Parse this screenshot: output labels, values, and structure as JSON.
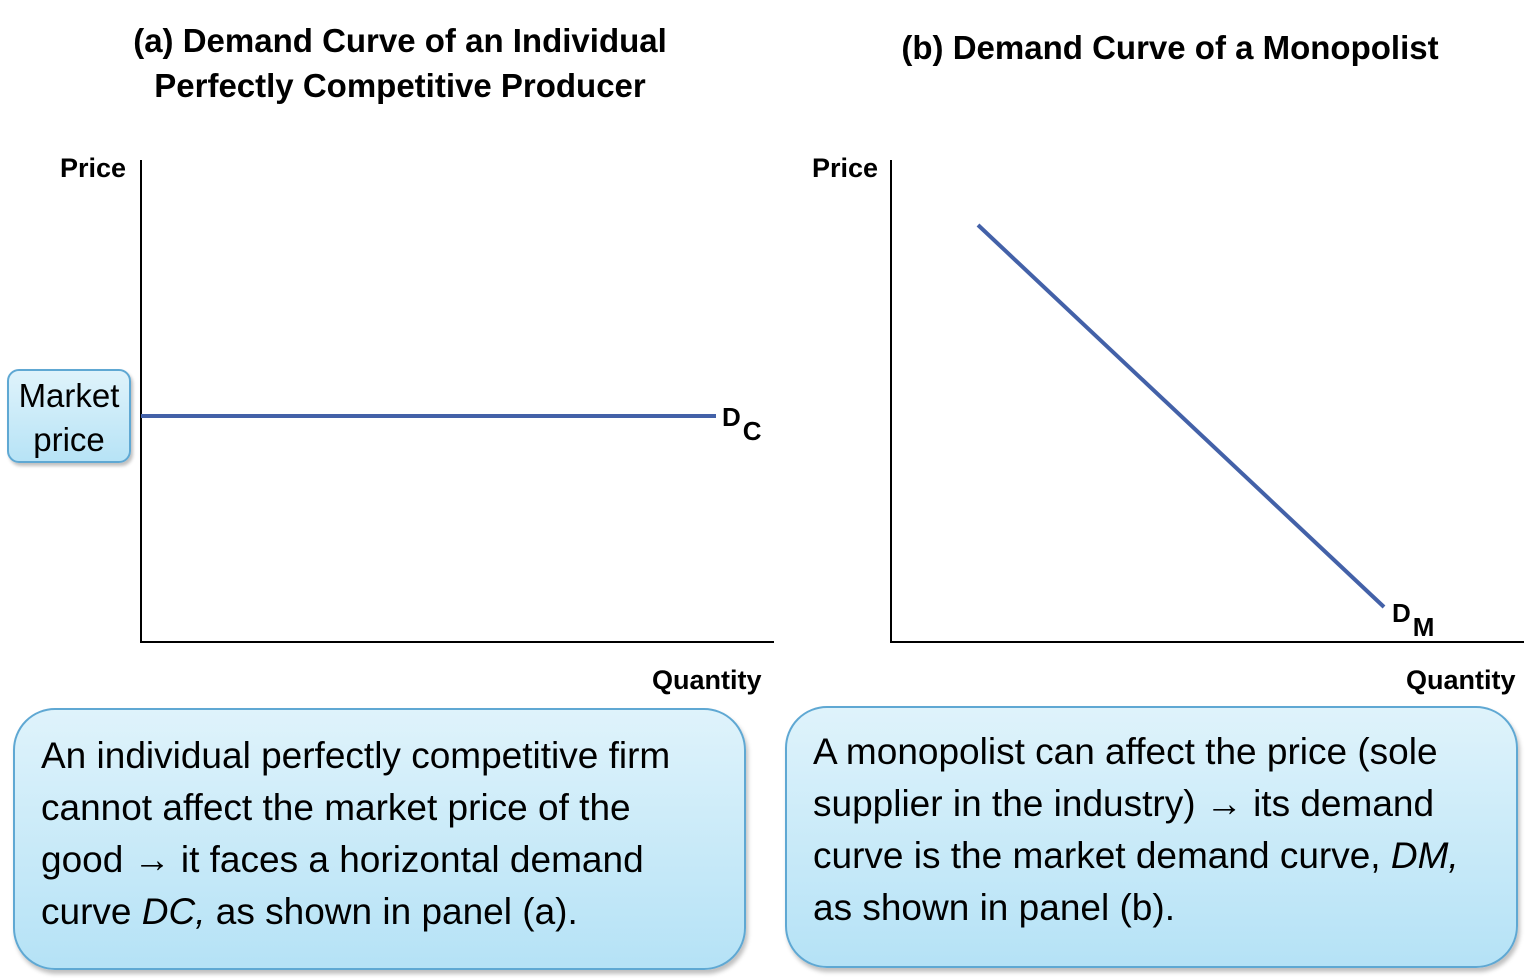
{
  "panel_a": {
    "title_line1": "(a) Demand Curve of an Individual",
    "title_line2": "Perfectly Competitive Producer",
    "y_axis_label": "Price",
    "x_axis_label": "Quantity",
    "curve_label_main": "D",
    "curve_label_sub": "C",
    "market_price_line1": "Market",
    "market_price_line2": "price",
    "note_lines": [
      "An individual perfectly competitive firm",
      "cannot affect the market price of the",
      "good → it faces a horizontal demand",
      "curve "
    ],
    "note_italic": "DC,",
    "note_tail": " as shown in panel (a)."
  },
  "panel_b": {
    "title": "(b) Demand Curve of a Monopolist",
    "y_axis_label": "Price",
    "x_axis_label": "Quantity",
    "curve_label_main": "D",
    "curve_label_sub": "M",
    "note_lines": [
      "A monopolist can affect the price (sole",
      "supplier in the industry) → its demand",
      "curve is the market demand curve, "
    ],
    "note_italic": "DM,",
    "note_tail": "as shown in panel (b)."
  },
  "colors": {
    "curve": "#4361a8",
    "axis": "#000000",
    "box_border": "#5fa8d3",
    "box_fill": "#c8ebf9"
  }
}
